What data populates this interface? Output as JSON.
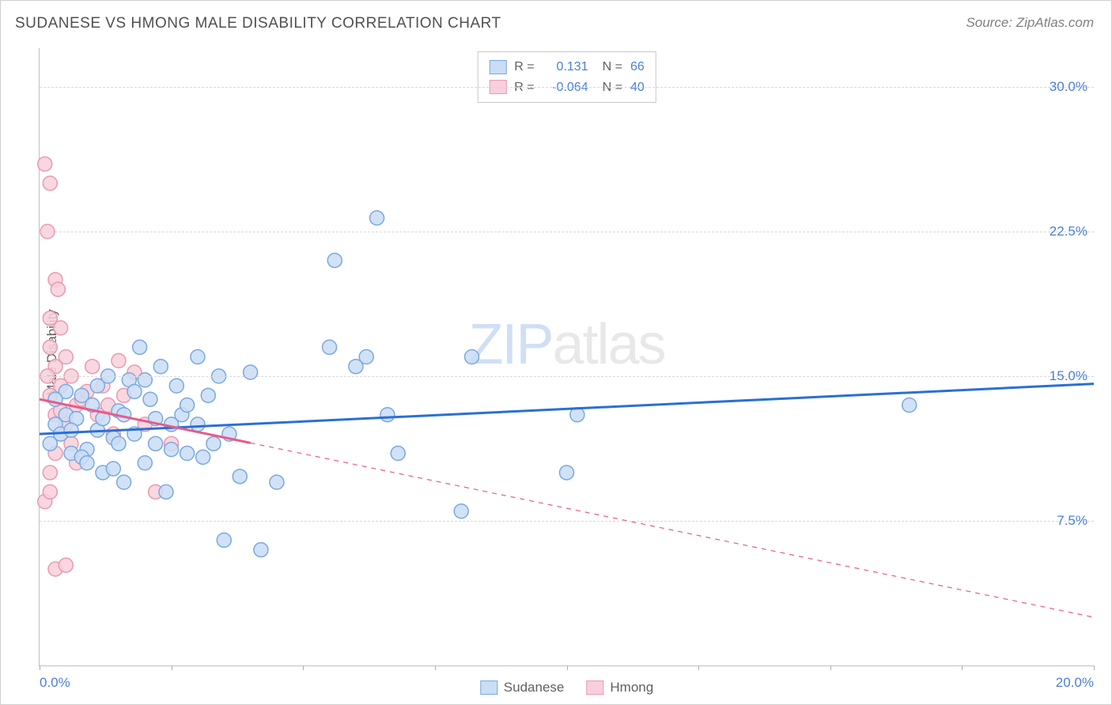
{
  "title": "SUDANESE VS HMONG MALE DISABILITY CORRELATION CHART",
  "source": "Source: ZipAtlas.com",
  "ylabel": "Male Disability",
  "watermark_a": "ZIP",
  "watermark_b": "atlas",
  "chart": {
    "type": "scatter",
    "xlim": [
      0,
      20
    ],
    "ylim": [
      0,
      32
    ],
    "x_ticks": [
      0,
      2.5,
      5,
      7.5,
      10,
      12.5,
      15,
      17.5,
      20
    ],
    "x_tick_labels": {
      "0": "0.0%",
      "20": "20.0%"
    },
    "y_ticks": [
      7.5,
      15.0,
      22.5,
      30.0
    ],
    "y_tick_labels": [
      "7.5%",
      "15.0%",
      "22.5%",
      "30.0%"
    ],
    "grid_color": "#d8d8d8",
    "background_color": "#ffffff",
    "axis_label_color": "#4a7fd8",
    "series": [
      {
        "name": "Sudanese",
        "color_fill": "#c9ddf5",
        "color_stroke": "#7aa8e0",
        "line_color": "#2a6fd6",
        "line_width": 3,
        "line_dash": "none",
        "marker_radius": 9,
        "R": "0.131",
        "N": "66",
        "trend": {
          "x1": 0,
          "y1": 12.0,
          "x2": 20,
          "y2": 14.6
        },
        "points": [
          [
            0.2,
            11.5
          ],
          [
            0.3,
            12.5
          ],
          [
            0.4,
            12.0
          ],
          [
            0.5,
            13.0
          ],
          [
            0.6,
            11.0
          ],
          [
            0.7,
            12.8
          ],
          [
            0.8,
            14.0
          ],
          [
            0.9,
            11.2
          ],
          [
            1.0,
            13.5
          ],
          [
            1.1,
            12.2
          ],
          [
            1.2,
            10.0
          ],
          [
            1.3,
            15.0
          ],
          [
            1.4,
            11.8
          ],
          [
            1.5,
            13.2
          ],
          [
            1.6,
            9.5
          ],
          [
            1.7,
            14.8
          ],
          [
            1.8,
            12.0
          ],
          [
            1.9,
            16.5
          ],
          [
            2.0,
            10.5
          ],
          [
            2.1,
            13.8
          ],
          [
            2.2,
            11.5
          ],
          [
            2.3,
            15.5
          ],
          [
            2.4,
            9.0
          ],
          [
            2.5,
            12.5
          ],
          [
            2.6,
            14.5
          ],
          [
            2.7,
            13.0
          ],
          [
            2.8,
            11.0
          ],
          [
            3.0,
            16.0
          ],
          [
            3.1,
            10.8
          ],
          [
            3.2,
            14.0
          ],
          [
            3.4,
            15.0
          ],
          [
            3.5,
            6.5
          ],
          [
            3.6,
            12.0
          ],
          [
            3.8,
            9.8
          ],
          [
            4.0,
            15.2
          ],
          [
            4.2,
            6.0
          ],
          [
            4.5,
            9.5
          ],
          [
            5.5,
            16.5
          ],
          [
            5.6,
            21.0
          ],
          [
            6.0,
            15.5
          ],
          [
            6.2,
            16.0
          ],
          [
            6.4,
            23.2
          ],
          [
            6.6,
            13.0
          ],
          [
            6.8,
            11.0
          ],
          [
            8.0,
            8.0
          ],
          [
            8.2,
            16.0
          ],
          [
            10.0,
            10.0
          ],
          [
            10.2,
            13.0
          ],
          [
            16.5,
            13.5
          ],
          [
            0.5,
            14.2
          ],
          [
            0.8,
            10.8
          ],
          [
            1.1,
            14.5
          ],
          [
            1.4,
            10.2
          ],
          [
            1.6,
            13.0
          ],
          [
            2.0,
            14.8
          ],
          [
            2.2,
            12.8
          ],
          [
            2.5,
            11.2
          ],
          [
            2.8,
            13.5
          ],
          [
            3.0,
            12.5
          ],
          [
            3.3,
            11.5
          ],
          [
            0.3,
            13.8
          ],
          [
            0.6,
            12.2
          ],
          [
            0.9,
            10.5
          ],
          [
            1.2,
            12.8
          ],
          [
            1.5,
            11.5
          ],
          [
            1.8,
            14.2
          ]
        ]
      },
      {
        "name": "Hmong",
        "color_fill": "#f8d0db",
        "color_stroke": "#e89ab2",
        "line_color": "#e85a8a",
        "line_width": 3,
        "line_dash": "solid_then_dash",
        "dash_from_x": 4.0,
        "marker_radius": 9,
        "R": "-0.064",
        "N": "40",
        "trend": {
          "x1": 0,
          "y1": 13.8,
          "x2": 20,
          "y2": 2.5
        },
        "points": [
          [
            0.1,
            26.0
          ],
          [
            0.2,
            25.0
          ],
          [
            0.15,
            22.5
          ],
          [
            0.3,
            20.0
          ],
          [
            0.35,
            19.5
          ],
          [
            0.2,
            18.0
          ],
          [
            0.4,
            17.5
          ],
          [
            0.2,
            16.5
          ],
          [
            0.5,
            16.0
          ],
          [
            0.3,
            15.5
          ],
          [
            0.6,
            15.0
          ],
          [
            0.4,
            14.5
          ],
          [
            0.2,
            14.0
          ],
          [
            0.7,
            13.5
          ],
          [
            0.3,
            13.0
          ],
          [
            0.5,
            12.5
          ],
          [
            0.4,
            12.0
          ],
          [
            0.6,
            11.5
          ],
          [
            0.3,
            11.0
          ],
          [
            0.7,
            10.5
          ],
          [
            0.2,
            10.0
          ],
          [
            0.8,
            13.8
          ],
          [
            0.9,
            14.2
          ],
          [
            1.0,
            15.5
          ],
          [
            1.1,
            13.0
          ],
          [
            1.2,
            14.5
          ],
          [
            1.3,
            13.5
          ],
          [
            1.4,
            12.0
          ],
          [
            1.5,
            15.8
          ],
          [
            1.6,
            14.0
          ],
          [
            1.8,
            15.2
          ],
          [
            2.0,
            12.5
          ],
          [
            2.2,
            9.0
          ],
          [
            2.5,
            11.5
          ],
          [
            0.1,
            8.5
          ],
          [
            0.3,
            5.0
          ],
          [
            0.5,
            5.2
          ],
          [
            0.2,
            9.0
          ],
          [
            0.4,
            13.2
          ],
          [
            0.15,
            15.0
          ]
        ]
      }
    ]
  },
  "legend_bottom": [
    {
      "label": "Sudanese",
      "fill": "#c9ddf5",
      "stroke": "#7aa8e0"
    },
    {
      "label": "Hmong",
      "fill": "#f8d0db",
      "stroke": "#e89ab2"
    }
  ]
}
